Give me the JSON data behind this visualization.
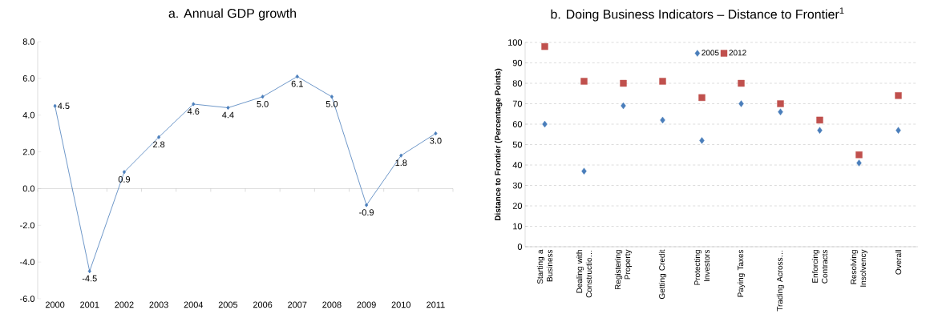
{
  "chart_data": [
    {
      "type": "line",
      "title": "a. Annual GDP growth",
      "categories": [
        "2000",
        "2001",
        "2002",
        "2003",
        "2004",
        "2005",
        "2006",
        "2007",
        "2008",
        "2009",
        "2010",
        "2011"
      ],
      "values": [
        4.5,
        -4.5,
        0.9,
        2.8,
        4.6,
        4.4,
        5.0,
        6.1,
        5.0,
        -0.9,
        1.8,
        3.0
      ],
      "value_labels": [
        "4.5",
        "-4.5",
        "0.9",
        "2.8",
        "4.6",
        "4.4",
        "5.0",
        "6.1",
        "5.0",
        "-0.9",
        "1.8",
        "3.0"
      ],
      "color": "#4a7ebb",
      "marker": "diamond",
      "ylim": [
        -6,
        8
      ],
      "yticks": [
        {
          "value": -6,
          "label": "-6.0"
        },
        {
          "value": -4,
          "label": "-4.0"
        },
        {
          "value": -2,
          "label": "-2.0"
        },
        {
          "value": 0,
          "label": "0.0"
        },
        {
          "value": 2,
          "label": "2.0"
        },
        {
          "value": 4,
          "label": "4.0"
        },
        {
          "value": 6,
          "label": "6.0"
        },
        {
          "value": 8,
          "label": "8.0"
        }
      ]
    },
    {
      "type": "scatter",
      "title": "b. Doing Business Indicators – Distance to Frontier$^{1}$",
      "ylabel": "Distance to Frontier (Percentage Points)",
      "categories": [
        "Starting a Business",
        "Dealing with Constructio…",
        "Registering Property",
        "Getting Credit",
        "Protecting Investors",
        "Paying Taxes",
        "Trading Across…",
        "Enforcing Contracts",
        "Resolving Insolvency",
        "Overall"
      ],
      "series": [
        {
          "name": "2005",
          "color": "#4a7ebb",
          "marker": "diamond",
          "values": [
            60,
            37,
            69,
            62,
            52,
            70,
            66,
            57,
            41,
            57
          ]
        },
        {
          "name": "2012",
          "color": "#c0504d",
          "marker": "square",
          "values": [
            98,
            81,
            80,
            81,
            73,
            80,
            70,
            62,
            45,
            74
          ]
        }
      ],
      "grid": "y",
      "legend": "top",
      "ylim": [
        0,
        100
      ],
      "yticks": [
        0,
        10,
        20,
        30,
        40,
        50,
        60,
        70,
        80,
        90,
        100
      ]
    }
  ]
}
